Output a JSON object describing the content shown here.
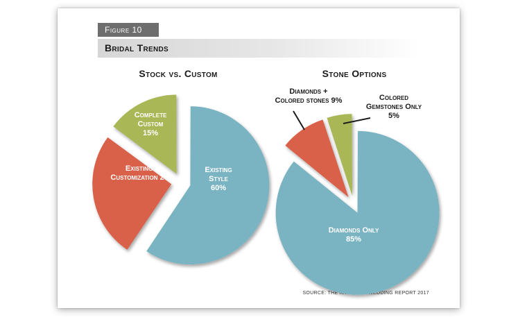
{
  "figure_label": "Figure 10",
  "title": "Bridal Trends",
  "source": "SOURCE: THE KNOT, THE WEDDING REPORT 2017",
  "colors": {
    "blue": "#7ab4c2",
    "red": "#d9614a",
    "green": "#a9b757"
  },
  "chart_data": [
    {
      "type": "pie",
      "title": "Stock vs. Custom",
      "slices": [
        {
          "label": [
            "Existing",
            "Style",
            "60%"
          ],
          "value": 60,
          "color": "#7ab4c2"
        },
        {
          "label": [
            "Existing &",
            "Customization 26%"
          ],
          "value": 26,
          "color": "#d9614a"
        },
        {
          "label": [
            "Complete",
            "Custom",
            "15%"
          ],
          "value": 15,
          "color": "#a9b757"
        }
      ]
    },
    {
      "type": "pie",
      "title": "Stone Options",
      "slices": [
        {
          "label": [
            "Diamonds Only",
            "85%"
          ],
          "value": 85,
          "color": "#7ab4c2"
        },
        {
          "label": [
            "Diamonds +",
            "Colored stones 9%"
          ],
          "value": 9,
          "color": "#d9614a"
        },
        {
          "label": [
            "Colored",
            "Gemstones Only",
            "5%"
          ],
          "value": 5,
          "color": "#a9b757"
        }
      ]
    }
  ]
}
